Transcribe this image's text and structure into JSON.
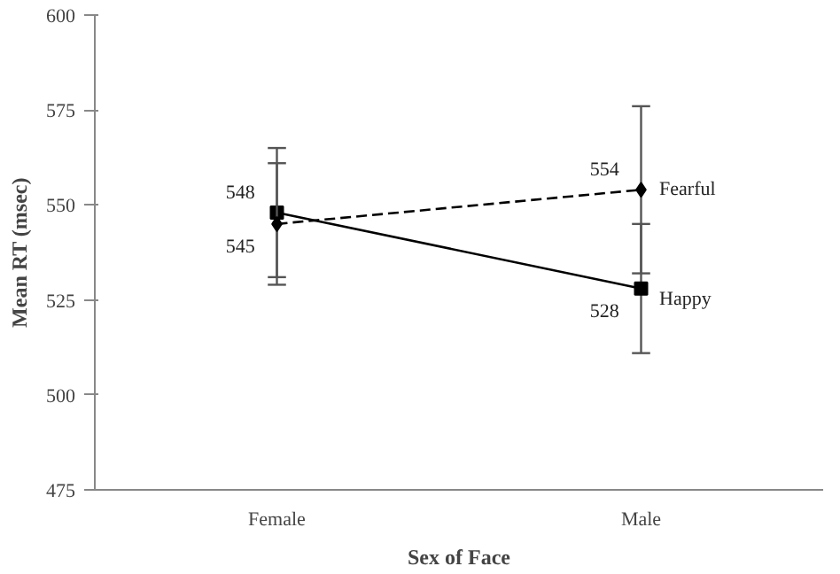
{
  "chart_data": {
    "type": "line",
    "xlabel": "Sex of Face",
    "ylabel": "Mean RT (msec)",
    "categories": [
      "Female",
      "Male"
    ],
    "series": [
      {
        "name": "Happy",
        "color": "#000000",
        "values": [
          548,
          528
        ],
        "errors": [
          17,
          17
        ],
        "marker": "square",
        "line_style": "solid"
      },
      {
        "name": "Fearful",
        "color": "#000000",
        "values": [
          545,
          554
        ],
        "errors": [
          16,
          22
        ],
        "marker": "diamond",
        "line_style": "dashed"
      }
    ],
    "ylim": [
      475,
      600
    ],
    "yticks": [
      475,
      500,
      525,
      550,
      575,
      600
    ],
    "grid": false,
    "data_labels": true
  }
}
